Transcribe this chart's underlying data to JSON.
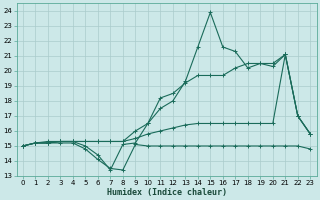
{
  "xlabel": "Humidex (Indice chaleur)",
  "bg_color": "#cce8e8",
  "grid_color": "#aacccc",
  "line_color": "#1a6b5a",
  "xlim": [
    -0.5,
    23.5
  ],
  "ylim": [
    13,
    24.5
  ],
  "xticks": [
    0,
    1,
    2,
    3,
    4,
    5,
    6,
    7,
    8,
    9,
    10,
    11,
    12,
    13,
    14,
    15,
    16,
    17,
    18,
    19,
    20,
    21,
    22,
    23
  ],
  "yticks": [
    13,
    14,
    15,
    16,
    17,
    18,
    19,
    20,
    21,
    22,
    23,
    24
  ],
  "series": [
    [
      15.0,
      15.2,
      15.2,
      15.2,
      15.2,
      14.8,
      14.1,
      13.5,
      13.4,
      15.1,
      15.0,
      15.0,
      15.0,
      15.0,
      15.0,
      15.0,
      15.0,
      15.0,
      15.0,
      15.0,
      15.0,
      15.0,
      15.0,
      14.8
    ],
    [
      15.0,
      15.2,
      15.2,
      15.3,
      15.3,
      15.3,
      15.3,
      15.3,
      15.3,
      16.0,
      16.5,
      17.5,
      18.0,
      19.3,
      21.6,
      23.9,
      21.6,
      21.3,
      20.2,
      20.5,
      20.3,
      21.1,
      17.0,
      15.8
    ],
    [
      15.0,
      15.2,
      15.2,
      15.3,
      15.3,
      15.0,
      14.4,
      13.4,
      15.1,
      15.2,
      16.5,
      18.2,
      18.5,
      19.2,
      19.7,
      19.7,
      19.7,
      20.2,
      20.5,
      20.5,
      20.5,
      21.1,
      17.0,
      15.8
    ],
    [
      15.0,
      15.2,
      15.3,
      15.3,
      15.3,
      15.3,
      15.3,
      15.3,
      15.3,
      15.5,
      15.8,
      16.0,
      16.2,
      16.4,
      16.5,
      16.5,
      16.5,
      16.5,
      16.5,
      16.5,
      16.5,
      21.1,
      17.0,
      15.8
    ]
  ]
}
